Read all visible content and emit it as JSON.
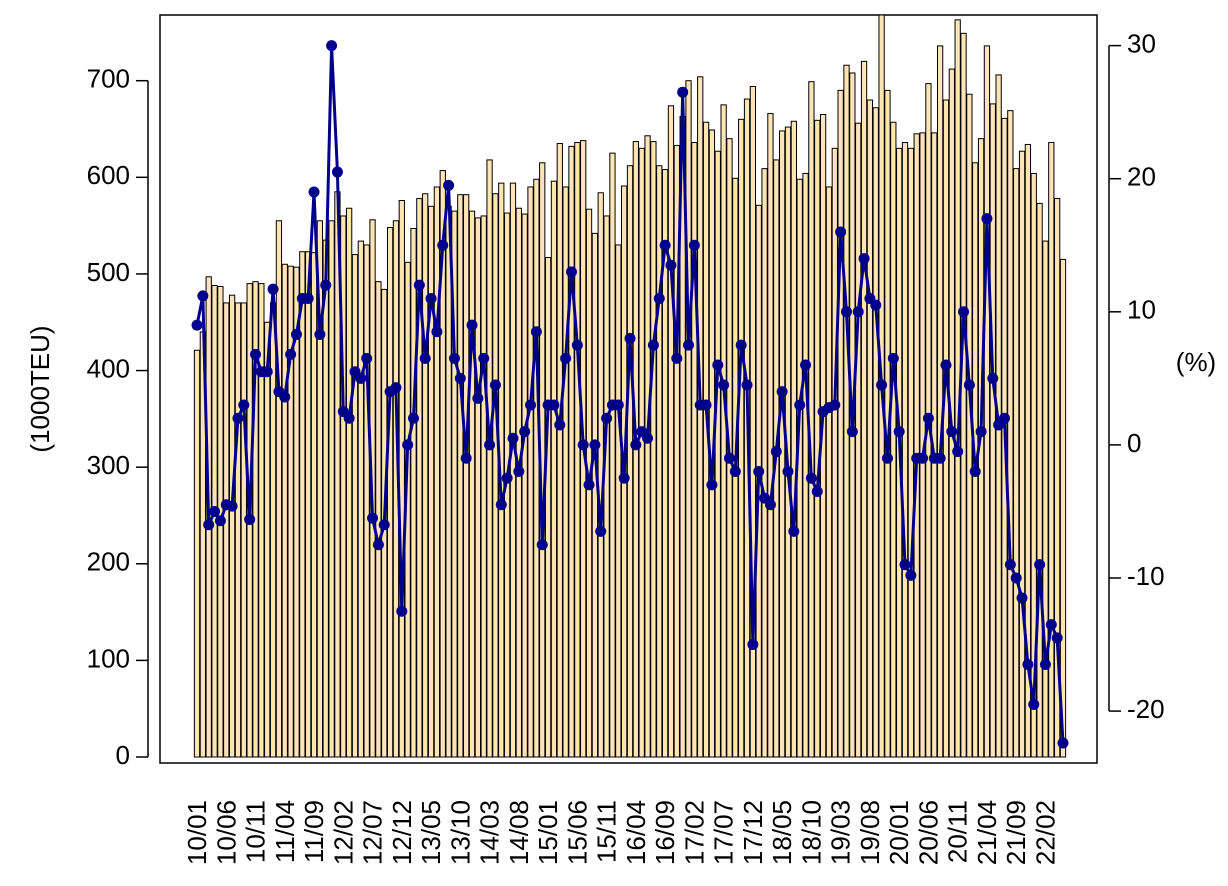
{
  "chart_data": {
    "type": "bar",
    "y_label": "(1000TEU)",
    "y2_label": "(%)",
    "categories": [
      "10/01",
      null,
      null,
      null,
      null,
      "10/06",
      null,
      null,
      null,
      null,
      "10/11",
      null,
      null,
      null,
      null,
      "11/04",
      null,
      null,
      null,
      null,
      "11/09",
      null,
      null,
      null,
      null,
      "12/02",
      null,
      null,
      null,
      null,
      "12/07",
      null,
      null,
      null,
      null,
      "12/12",
      null,
      null,
      null,
      null,
      "13/05",
      null,
      null,
      null,
      null,
      "13/10",
      null,
      null,
      null,
      null,
      "14/03",
      null,
      null,
      null,
      null,
      "14/08",
      null,
      null,
      null,
      null,
      "15/01",
      null,
      null,
      null,
      null,
      "15/06",
      null,
      null,
      null,
      null,
      "15/11",
      null,
      null,
      null,
      null,
      "16/04",
      null,
      null,
      null,
      null,
      "16/09",
      null,
      null,
      null,
      null,
      "17/02",
      null,
      null,
      null,
      null,
      "17/07",
      null,
      null,
      null,
      null,
      "17/12",
      null,
      null,
      null,
      null,
      "18/05",
      null,
      null,
      null,
      null,
      "18/10",
      null,
      null,
      null,
      null,
      "19/03",
      null,
      null,
      null,
      null,
      "19/08",
      null,
      null,
      null,
      null,
      "20/01",
      null,
      null,
      null,
      null,
      "20/06",
      null,
      null,
      null,
      null,
      "20/11",
      null,
      null,
      null,
      null,
      "21/04",
      null,
      null,
      null,
      null,
      "21/09",
      null,
      null,
      null,
      null,
      "22/02",
      null,
      null,
      null
    ],
    "series": [
      {
        "type": "bar",
        "color": "#ffe4b5",
        "values": [
          421,
          440,
          497,
          488,
          487,
          470,
          478,
          470,
          470,
          490,
          492,
          490,
          450,
          470,
          555,
          510,
          508,
          507,
          523,
          523,
          522,
          555,
          535,
          555,
          585,
          560,
          568,
          520,
          534,
          530,
          556,
          492,
          484,
          548,
          555,
          576,
          512,
          547,
          578,
          583,
          570,
          590,
          607,
          570,
          565,
          582,
          582,
          565,
          558,
          560,
          618,
          583,
          594,
          563,
          594,
          568,
          562,
          590,
          598,
          615,
          517,
          596,
          635,
          590,
          632,
          636,
          638,
          567,
          542,
          584,
          560,
          625,
          530,
          591,
          612,
          637,
          630,
          643,
          637,
          612,
          608,
          674,
          633,
          663,
          700,
          636,
          704,
          657,
          649,
          627,
          675,
          640,
          599,
          660,
          681,
          694,
          571,
          609,
          666,
          618,
          648,
          652,
          658,
          598,
          604,
          699,
          659,
          665,
          590,
          630,
          690,
          716,
          708,
          656,
          720,
          680,
          672,
          768,
          690,
          657,
          630,
          636,
          630,
          645,
          646,
          697,
          646,
          736,
          680,
          712,
          763,
          749,
          686,
          615,
          640,
          736,
          676,
          706,
          661,
          669,
          609,
          627,
          634,
          604,
          573,
          534,
          636,
          578,
          515
        ]
      },
      {
        "type": "line",
        "axis": "y2",
        "color": "#00008b",
        "values": [
          9,
          11.2,
          -6,
          -5,
          -5.7,
          -4.5,
          -4.6,
          2,
          3,
          -5.6,
          6.8,
          5.5,
          5.5,
          11.7,
          4,
          3.6,
          6.8,
          8.3,
          11,
          11,
          19,
          8.3,
          12,
          30,
          20.5,
          2.5,
          2,
          5.5,
          5,
          6.5,
          -5.5,
          -7.5,
          -6,
          4,
          4.3,
          -12.5,
          0,
          2,
          12,
          6.5,
          11,
          8.5,
          15,
          19.5,
          6.5,
          5,
          -1,
          9,
          3.5,
          6.5,
          0,
          4.5,
          -4.5,
          -2.5,
          0.5,
          -2,
          1,
          3,
          8.5,
          -7.5,
          3,
          3,
          1.5,
          6.5,
          13,
          7.5,
          0,
          -3,
          0,
          -6.5,
          2,
          3,
          3,
          -2.5,
          8,
          0,
          1,
          0.5,
          7.5,
          11,
          15,
          13.5,
          6.5,
          26.5,
          7.5,
          15,
          3,
          3,
          -3,
          6,
          4.5,
          -1,
          -2,
          7.5,
          4.5,
          -15,
          -2,
          -4,
          -4.5,
          -0.5,
          4,
          -2,
          -6.5,
          3,
          6,
          -2.5,
          -3.5,
          2.5,
          2.8,
          3,
          16,
          10,
          1,
          10,
          14,
          11,
          10.5,
          4.5,
          -1,
          6.5,
          1,
          -9,
          -9.8,
          -1,
          -1,
          2,
          -1,
          -1,
          6,
          1,
          -0.5,
          10,
          4.5,
          -2,
          1,
          17,
          5,
          1.5,
          2,
          -9,
          -10,
          -11.5,
          -16.5,
          -19.5,
          -9,
          -16.5,
          -13.5,
          -14.5,
          -22.4
        ]
      }
    ],
    "ylim": [
      -6.2,
      768
    ],
    "yticks": [
      0,
      100,
      200,
      300,
      400,
      500,
      600,
      700
    ],
    "y2lim": [
      -23.9,
      32.3
    ],
    "y2ticks": [
      -20,
      -10,
      0,
      10,
      20,
      30
    ]
  }
}
